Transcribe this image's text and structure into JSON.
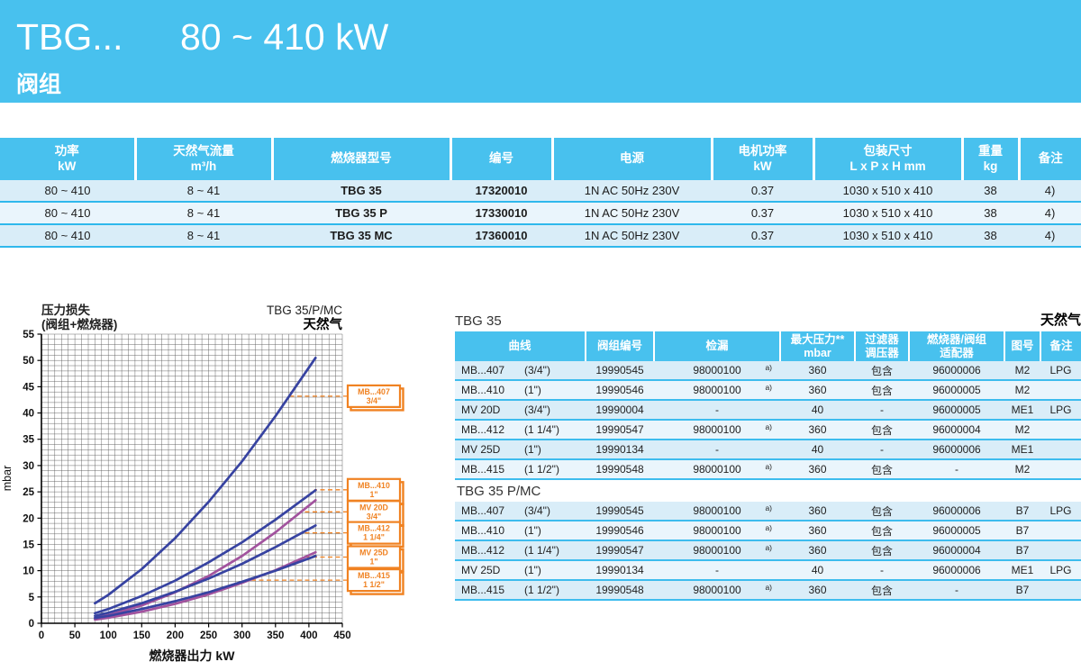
{
  "header": {
    "model": "TBG...",
    "power_range": "80 ~ 410 kW",
    "subtitle": "阀组"
  },
  "main_table": {
    "columns": [
      {
        "l1": "功率",
        "l2": "kW"
      },
      {
        "l1": "天然气流量",
        "l2": "m³/h"
      },
      {
        "l1": "燃烧器型号",
        "l2": ""
      },
      {
        "l1": "编号",
        "l2": ""
      },
      {
        "l1": "电源",
        "l2": ""
      },
      {
        "l1": "电机功率",
        "l2": "kW"
      },
      {
        "l1": "包装尺寸",
        "l2": "L x P x H  mm"
      },
      {
        "l1": "重量",
        "l2": "kg"
      },
      {
        "l1": "备注",
        "l2": ""
      }
    ],
    "rows": [
      [
        "80 ~ 410",
        "8 ~ 41",
        "TBG 35",
        "17320010",
        "1N AC 50Hz 230V",
        "0.37",
        "1030 x 510 x 410",
        "38",
        "4)"
      ],
      [
        "80 ~ 410",
        "8 ~ 41",
        "TBG 35 P",
        "17330010",
        "1N AC 50Hz 230V",
        "0.37",
        "1030 x 510 x 410",
        "38",
        "4)"
      ],
      [
        "80 ~ 410",
        "8 ~ 41",
        "TBG 35 MC",
        "17360010",
        "1N AC 50Hz 230V",
        "0.37",
        "1030 x 510 x 410",
        "38",
        "4)"
      ]
    ]
  },
  "chart_data": {
    "type": "line",
    "title_left_line1": "压力损失",
    "title_left_line2": "(阀组+燃烧器)",
    "title_right_line1": "TBG 35/P/MC",
    "title_right_line2": "天然气",
    "xlabel": "燃烧器出力  kW",
    "ylabel": "mbar",
    "xlim": [
      0,
      450
    ],
    "ylim": [
      0,
      55
    ],
    "xticks": [
      0,
      50,
      100,
      150,
      200,
      250,
      300,
      350,
      400,
      450
    ],
    "yticks": [
      0,
      5,
      10,
      15,
      20,
      25,
      30,
      35,
      40,
      45,
      50,
      55
    ],
    "grid": true,
    "grid_step_x": 10,
    "grid_step_y": 1,
    "callout_color": "#f08222",
    "series": [
      {
        "name": "MB...407",
        "size": "3/4\"",
        "color": "#3743a1",
        "points": [
          [
            80,
            3.8
          ],
          [
            100,
            5.4
          ],
          [
            150,
            10.3
          ],
          [
            200,
            16.2
          ],
          [
            250,
            23.1
          ],
          [
            300,
            30.8
          ],
          [
            350,
            39.4
          ],
          [
            410,
            50.5
          ]
        ],
        "callout_y": 43.2,
        "callout_anchor_kw": 370
      },
      {
        "name": "MB...410",
        "size": "1\"",
        "color": "#3743a1",
        "points": [
          [
            80,
            1.9
          ],
          [
            100,
            2.7
          ],
          [
            150,
            5.2
          ],
          [
            200,
            8.1
          ],
          [
            250,
            11.6
          ],
          [
            300,
            15.4
          ],
          [
            350,
            19.7
          ],
          [
            410,
            25.3
          ]
        ],
        "callout_y": 25.4,
        "callout_anchor_kw": 408
      },
      {
        "name": "MV 20D",
        "size": "3/4\"",
        "color": "#a2539e",
        "points": [
          [
            80,
            1.0
          ],
          [
            100,
            1.55
          ],
          [
            150,
            3.4
          ],
          [
            200,
            5.9
          ],
          [
            250,
            9.0
          ],
          [
            300,
            12.8
          ],
          [
            350,
            17.3
          ],
          [
            410,
            23.4
          ]
        ],
        "callout_y": 21.2,
        "callout_anchor_kw": 390
      },
      {
        "name": "MB...412",
        "size": "1 1/4\"",
        "color": "#3743a1",
        "points": [
          [
            80,
            1.4
          ],
          [
            100,
            2.0
          ],
          [
            150,
            3.8
          ],
          [
            200,
            6.0
          ],
          [
            250,
            8.5
          ],
          [
            300,
            11.3
          ],
          [
            350,
            14.5
          ],
          [
            410,
            18.6
          ]
        ],
        "callout_y": 17.2,
        "callout_anchor_kw": 391
      },
      {
        "name": "MV 25D",
        "size": "1\"",
        "color": "#a2539e",
        "points": [
          [
            80,
            0.7
          ],
          [
            100,
            1.05
          ],
          [
            150,
            2.2
          ],
          [
            200,
            3.7
          ],
          [
            250,
            5.5
          ],
          [
            300,
            7.7
          ],
          [
            350,
            10.1
          ],
          [
            410,
            13.5
          ]
        ],
        "callout_y": 12.6,
        "callout_anchor_kw": 396
      },
      {
        "name": "MB...415",
        "size": "1 1/2\"",
        "color": "#3743a1",
        "points": [
          [
            80,
            1.0
          ],
          [
            100,
            1.4
          ],
          [
            150,
            2.7
          ],
          [
            200,
            4.2
          ],
          [
            250,
            5.9
          ],
          [
            300,
            7.9
          ],
          [
            350,
            10.0
          ],
          [
            410,
            12.8
          ]
        ],
        "callout_y": 8.2,
        "callout_anchor_kw": 308
      }
    ]
  },
  "gas_table": {
    "gas_label": "天然气",
    "columns": {
      "curve": "曲线",
      "valve_no": "阀组编号",
      "leak": "检漏",
      "max_p_l1": "最大压力**",
      "max_p_l2": "mbar",
      "filter_l1": "过滤器",
      "filter_l2": "调压器",
      "adapter_l1": "燃烧器/阀组",
      "adapter_l2": "适配器",
      "fig": "图号",
      "note": "备注"
    },
    "sections": [
      {
        "title": "TBG 35",
        "rows": [
          [
            "MB...407",
            "(3/4\")",
            "19990545",
            "98000100",
            "a)",
            "360",
            "包含",
            "96000006",
            "M2",
            "LPG"
          ],
          [
            "MB...410",
            "(1\")",
            "19990546",
            "98000100",
            "a)",
            "360",
            "包含",
            "96000005",
            "M2",
            ""
          ],
          [
            "MV 20D",
            "(3/4\")",
            "19990004",
            "-",
            "",
            "40",
            "-",
            "96000005",
            "ME1",
            "LPG"
          ],
          [
            "MB...412",
            "(1 1/4\")",
            "19990547",
            "98000100",
            "a)",
            "360",
            "包含",
            "96000004",
            "M2",
            ""
          ],
          [
            "MV 25D",
            "(1\")",
            "19990134",
            "-",
            "",
            "40",
            "-",
            "96000006",
            "ME1",
            ""
          ],
          [
            "MB...415",
            "(1 1/2\")",
            "19990548",
            "98000100",
            "a)",
            "360",
            "包含",
            "-",
            "M2",
            ""
          ]
        ]
      },
      {
        "title": "TBG 35 P/MC",
        "rows": [
          [
            "MB...407",
            "(3/4\")",
            "19990545",
            "98000100",
            "a)",
            "360",
            "包含",
            "96000006",
            "B7",
            "LPG"
          ],
          [
            "MB...410",
            "(1\")",
            "19990546",
            "98000100",
            "a)",
            "360",
            "包含",
            "96000005",
            "B7",
            ""
          ],
          [
            "MB...412",
            "(1 1/4\")",
            "19990547",
            "98000100",
            "a)",
            "360",
            "包含",
            "96000004",
            "B7",
            ""
          ],
          [
            "MV 25D",
            "(1\")",
            "19990134",
            "-",
            "",
            "40",
            "-",
            "96000006",
            "ME1",
            "LPG"
          ],
          [
            "MB...415",
            "(1 1/2\")",
            "19990548",
            "98000100",
            "a)",
            "360",
            "包含",
            "-",
            "B7",
            ""
          ]
        ]
      }
    ]
  }
}
